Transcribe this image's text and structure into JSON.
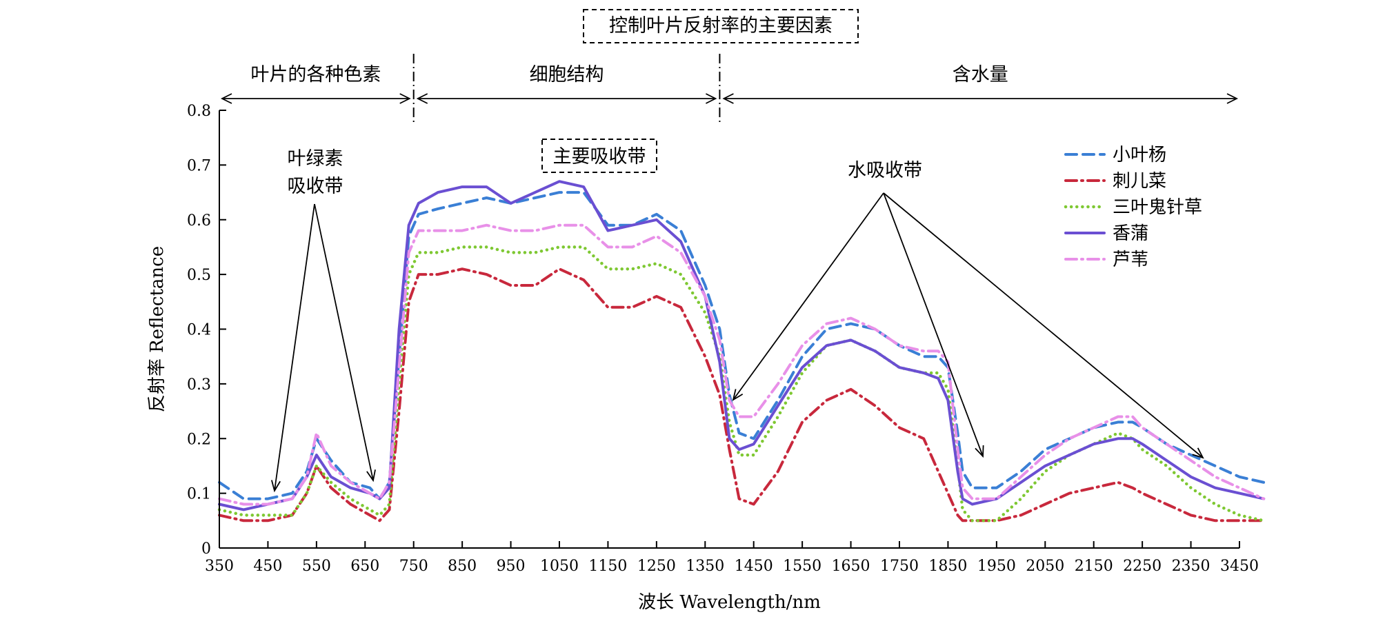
{
  "chart_data": {
    "type": "line",
    "xlabel": "波长 Wavelength/nm",
    "ylabel": "反射率 Reflectance",
    "ylim": [
      0,
      0.8
    ],
    "x_ticks": [
      "350",
      "450",
      "550",
      "650",
      "750",
      "850",
      "950",
      "1050",
      "1150",
      "1250",
      "1350",
      "1450",
      "1550",
      "1650",
      "1750",
      "1850",
      "1950",
      "2050",
      "2150",
      "2250",
      "2350",
      "3450"
    ],
    "y_ticks": [
      "0",
      "0.1",
      "0.2",
      "0.3",
      "0.4",
      "0.5",
      "0.6",
      "0.7",
      "0.8"
    ],
    "grid": false,
    "legend_position": "top-right",
    "regions_title": "控制叶片反射率的主要因素",
    "regions": [
      {
        "label": "叶片的各种色素",
        "from": 350,
        "to": 750
      },
      {
        "label": "细胞结构",
        "from": 750,
        "to": 1380
      },
      {
        "label": "含水量",
        "from": 1380,
        "to": 2500
      }
    ],
    "annotations": {
      "chlorophyll_line1": "叶绿素",
      "chlorophyll_line2": "吸收带",
      "main_absorption": "主要吸收带",
      "water_absorption": "水吸收带"
    },
    "x": [
      350,
      400,
      450,
      500,
      530,
      550,
      580,
      620,
      660,
      680,
      700,
      720,
      740,
      760,
      800,
      850,
      900,
      950,
      1000,
      1050,
      1100,
      1150,
      1200,
      1250,
      1300,
      1350,
      1380,
      1400,
      1420,
      1450,
      1500,
      1550,
      1600,
      1650,
      1700,
      1750,
      1800,
      1830,
      1850,
      1870,
      1880,
      1900,
      1950,
      2000,
      2050,
      2100,
      2150,
      2200,
      2230,
      2250,
      2300,
      2350,
      2400,
      2450,
      2500
    ],
    "series": [
      {
        "name": "小叶杨",
        "color": "#3a7fd5",
        "style": "dashed",
        "values": [
          0.12,
          0.09,
          0.09,
          0.1,
          0.14,
          0.2,
          0.16,
          0.12,
          0.11,
          0.09,
          0.12,
          0.35,
          0.57,
          0.61,
          0.62,
          0.63,
          0.64,
          0.63,
          0.64,
          0.65,
          0.65,
          0.59,
          0.59,
          0.61,
          0.58,
          0.48,
          0.4,
          0.28,
          0.21,
          0.2,
          0.27,
          0.35,
          0.4,
          0.41,
          0.4,
          0.37,
          0.35,
          0.35,
          0.33,
          0.21,
          0.14,
          0.11,
          0.11,
          0.14,
          0.18,
          0.2,
          0.22,
          0.23,
          0.23,
          0.22,
          0.19,
          0.17,
          0.15,
          0.13,
          0.12
        ]
      },
      {
        "name": "刺儿菜",
        "color": "#c8283c",
        "style": "dashdot",
        "values": [
          0.06,
          0.05,
          0.05,
          0.06,
          0.1,
          0.15,
          0.11,
          0.08,
          0.06,
          0.05,
          0.07,
          0.25,
          0.45,
          0.5,
          0.5,
          0.51,
          0.5,
          0.48,
          0.48,
          0.51,
          0.49,
          0.44,
          0.44,
          0.46,
          0.44,
          0.35,
          0.28,
          0.18,
          0.09,
          0.08,
          0.14,
          0.23,
          0.27,
          0.29,
          0.26,
          0.22,
          0.2,
          0.14,
          0.1,
          0.06,
          0.05,
          0.05,
          0.05,
          0.06,
          0.08,
          0.1,
          0.11,
          0.12,
          0.11,
          0.1,
          0.08,
          0.06,
          0.05,
          0.05,
          0.05
        ]
      },
      {
        "name": "三叶鬼针草",
        "color": "#7ec832",
        "style": "dotted",
        "values": [
          0.07,
          0.06,
          0.06,
          0.06,
          0.1,
          0.15,
          0.12,
          0.09,
          0.07,
          0.06,
          0.08,
          0.3,
          0.5,
          0.54,
          0.54,
          0.55,
          0.55,
          0.54,
          0.54,
          0.55,
          0.55,
          0.51,
          0.51,
          0.52,
          0.5,
          0.43,
          0.35,
          0.23,
          0.17,
          0.17,
          0.24,
          0.32,
          0.37,
          0.38,
          0.36,
          0.33,
          0.32,
          0.32,
          0.29,
          0.15,
          0.07,
          0.05,
          0.05,
          0.09,
          0.14,
          0.17,
          0.19,
          0.21,
          0.2,
          0.18,
          0.15,
          0.11,
          0.08,
          0.06,
          0.05
        ]
      },
      {
        "name": "香蒲",
        "color": "#6a4fd2",
        "style": "solid",
        "values": [
          0.08,
          0.07,
          0.08,
          0.09,
          0.13,
          0.17,
          0.13,
          0.11,
          0.1,
          0.09,
          0.11,
          0.4,
          0.59,
          0.63,
          0.65,
          0.66,
          0.66,
          0.63,
          0.65,
          0.67,
          0.66,
          0.58,
          0.59,
          0.6,
          0.56,
          0.46,
          0.34,
          0.2,
          0.18,
          0.19,
          0.26,
          0.33,
          0.37,
          0.38,
          0.36,
          0.33,
          0.32,
          0.31,
          0.27,
          0.14,
          0.09,
          0.08,
          0.09,
          0.12,
          0.15,
          0.17,
          0.19,
          0.2,
          0.2,
          0.19,
          0.16,
          0.13,
          0.11,
          0.1,
          0.09
        ]
      },
      {
        "name": "芦苇",
        "color": "#e890e8",
        "style": "dashdot",
        "values": [
          0.09,
          0.08,
          0.08,
          0.09,
          0.13,
          0.21,
          0.15,
          0.12,
          0.1,
          0.09,
          0.12,
          0.33,
          0.54,
          0.58,
          0.58,
          0.58,
          0.59,
          0.58,
          0.58,
          0.59,
          0.59,
          0.55,
          0.55,
          0.57,
          0.54,
          0.46,
          0.38,
          0.27,
          0.24,
          0.24,
          0.3,
          0.37,
          0.41,
          0.42,
          0.4,
          0.37,
          0.36,
          0.36,
          0.34,
          0.18,
          0.11,
          0.09,
          0.09,
          0.13,
          0.17,
          0.2,
          0.22,
          0.24,
          0.24,
          0.22,
          0.19,
          0.16,
          0.13,
          0.11,
          0.09
        ]
      }
    ]
  }
}
